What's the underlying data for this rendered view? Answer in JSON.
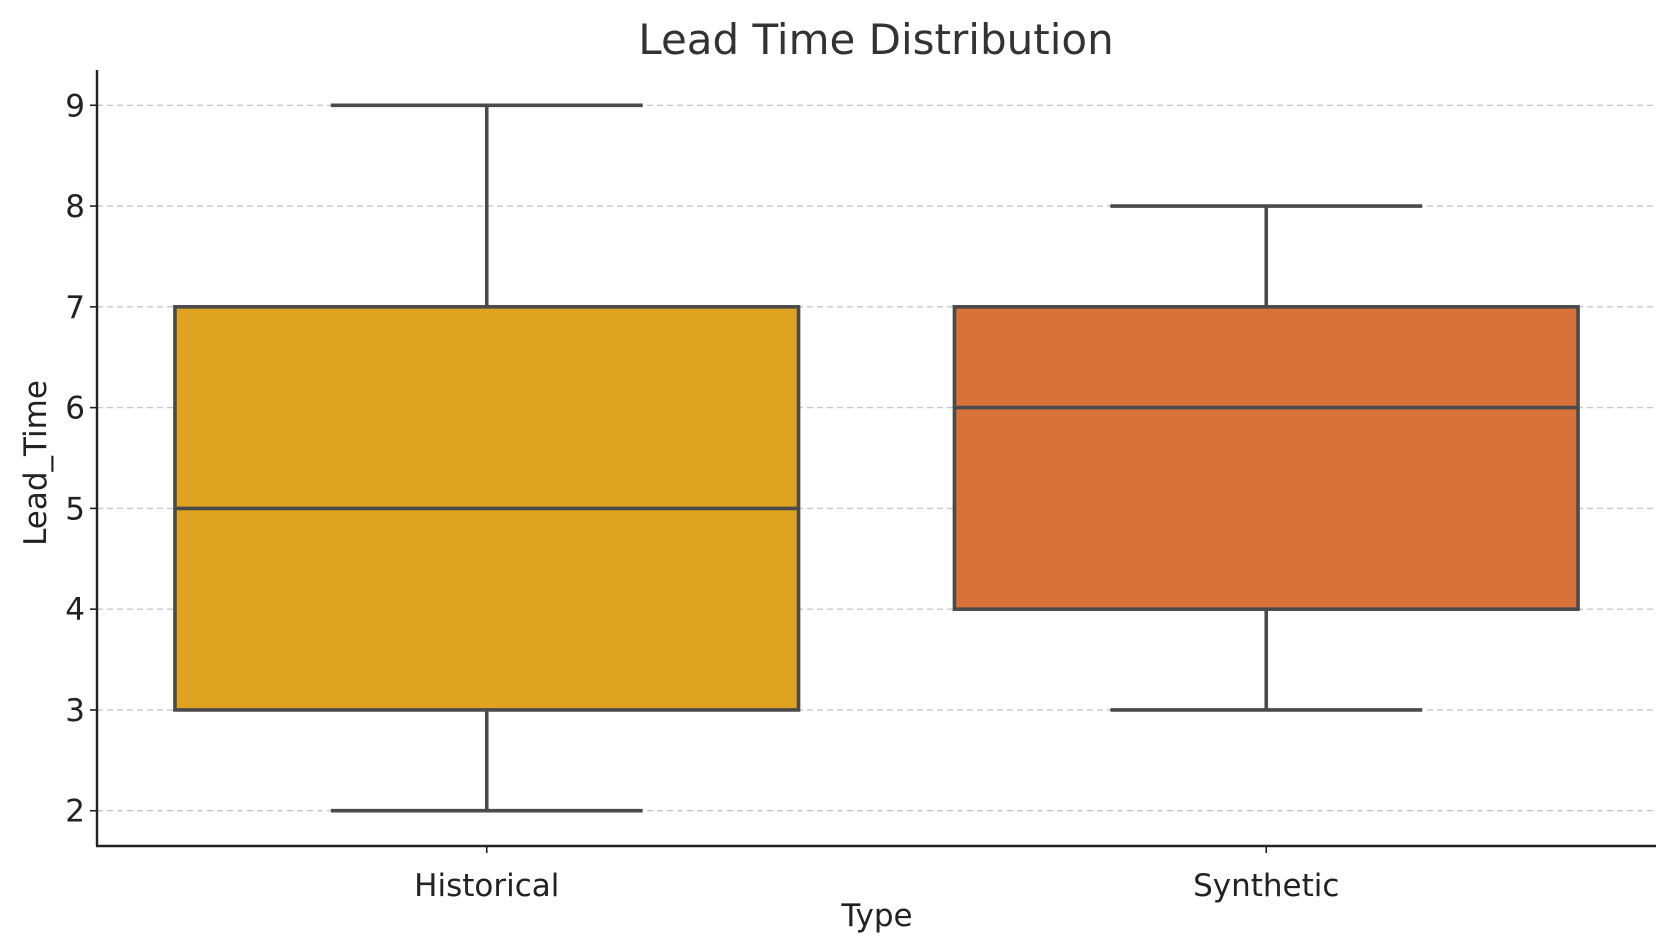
{
  "chart_data": {
    "type": "box",
    "title": "Lead Time Distribution",
    "xlabel": "Type",
    "ylabel": "Lead_Time",
    "ylim": [
      1.65,
      9.35
    ],
    "yticks": [
      "2",
      "3",
      "4",
      "5",
      "6",
      "7",
      "8",
      "9"
    ],
    "grid": {
      "y": true,
      "style": "dashed"
    },
    "categories": [
      "Historical",
      "Synthetic"
    ],
    "boxes": [
      {
        "category": "Historical",
        "min": 2,
        "q1": 3,
        "median": 5,
        "q3": 7,
        "max": 9,
        "color": "#dea321"
      },
      {
        "category": "Synthetic",
        "min": 3,
        "q1": 4,
        "median": 6,
        "q3": 7,
        "max": 8,
        "color": "#d9713b"
      }
    ]
  }
}
